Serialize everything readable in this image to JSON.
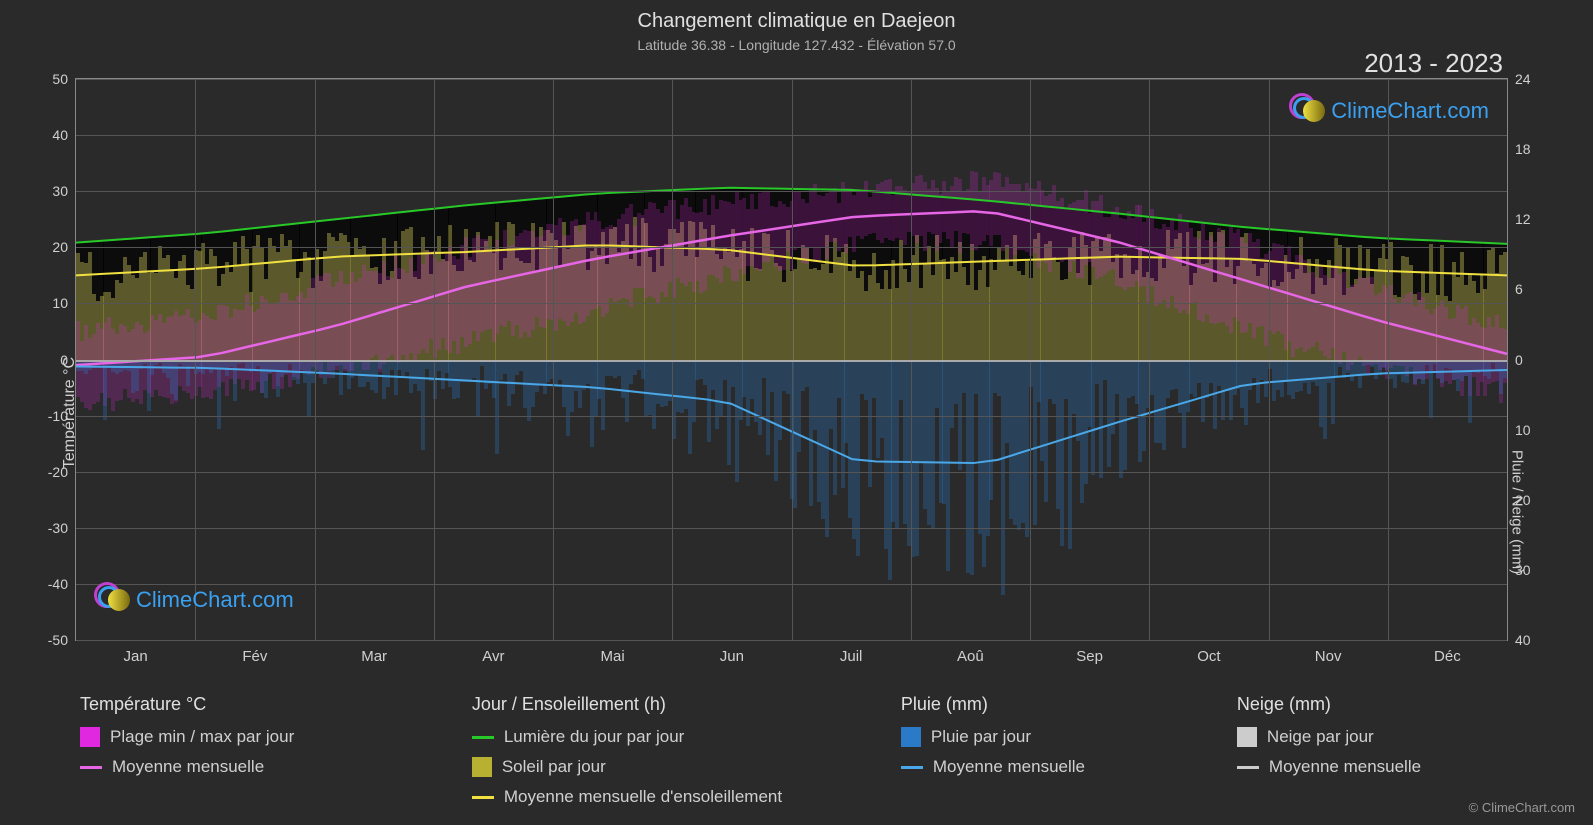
{
  "title": "Changement climatique en Daejeon",
  "subtitle": "Latitude 36.38 - Longitude 127.432 - Élévation 57.0",
  "year_range": "2013 - 2023",
  "copyright": "© ClimeChart.com",
  "logo_text": "ClimeChart.com",
  "chart": {
    "type": "climate-multi-axis",
    "background_color": "#2a2a2a",
    "grid_color": "#555555",
    "border_color": "#888888",
    "text_color": "#d0d0d0",
    "title_fontsize": 20,
    "subtitle_fontsize": 14,
    "label_fontsize": 14,
    "x_axis": {
      "months": [
        "Jan",
        "Fév",
        "Mar",
        "Avr",
        "Mai",
        "Jun",
        "Juil",
        "Aoû",
        "Sep",
        "Oct",
        "Nov",
        "Déc"
      ]
    },
    "y_left": {
      "title": "Température °C",
      "min": -50,
      "max": 50,
      "step": 10,
      "ticks": [
        -50,
        -40,
        -30,
        -20,
        -10,
        0,
        10,
        20,
        30,
        40,
        50
      ]
    },
    "y_right_top": {
      "title": "Jour / Ensoleillement (h)",
      "min": 0,
      "max": 24,
      "step": 6,
      "ticks": [
        0,
        6,
        12,
        18,
        24
      ]
    },
    "y_right_bottom": {
      "title": "Pluie / Neige (mm)",
      "min": 0,
      "max": 40,
      "step": 10,
      "ticks": [
        0,
        10,
        20,
        30,
        40
      ]
    },
    "series": {
      "temp_avg_monthly": {
        "color": "#e666e6",
        "values_c": [
          -1,
          0.5,
          6,
          13,
          18,
          22,
          25.5,
          26.5,
          21,
          14,
          7,
          1
        ],
        "line_width": 2.5
      },
      "daylight_monthly": {
        "color": "#28c828",
        "values_h": [
          10,
          10.8,
          12,
          13.2,
          14.2,
          14.7,
          14.5,
          13.6,
          12.5,
          11.3,
          10.4,
          9.9
        ],
        "line_width": 2
      },
      "sunshine_monthly": {
        "color": "#f0e040",
        "values_h": [
          7.2,
          7.8,
          8.8,
          9.2,
          9.8,
          9.4,
          8.0,
          8.4,
          8.8,
          8.6,
          7.6,
          7.2
        ],
        "line_width": 2
      },
      "rain_monthly": {
        "color": "#4aa8e8",
        "values_mm": [
          1,
          1.2,
          2,
          3,
          4,
          6,
          14.5,
          14.8,
          9,
          3.5,
          2,
          1.5
        ],
        "line_width": 2
      },
      "snow_monthly": {
        "color": "#cccccc",
        "values_mm": [
          0.3,
          0.2,
          0.05,
          0,
          0,
          0,
          0,
          0,
          0,
          0,
          0.05,
          0.3
        ],
        "line_width": 2
      },
      "temp_range_daily": {
        "color": "#e028e0",
        "opacity": 0.22,
        "min_base_c": [
          -8,
          -6,
          -2,
          3,
          9,
          15,
          21,
          21,
          14,
          5,
          -2,
          -6
        ],
        "max_base_c": [
          5,
          8,
          14,
          20,
          25,
          28,
          30,
          32,
          27,
          21,
          13,
          6
        ],
        "jitter_c": 4
      },
      "sunshine_daily": {
        "color": "#b8b030",
        "opacity": 0.35,
        "base_h": [
          7.2,
          7.8,
          8.8,
          9.2,
          9.8,
          9.4,
          8.0,
          8.4,
          8.8,
          8.6,
          7.6,
          7.2
        ],
        "jitter_h": 2.5
      },
      "rain_daily": {
        "color": "#2a7ac8",
        "opacity": 0.3,
        "base_mm": [
          1,
          1.2,
          2,
          3,
          4,
          6,
          14.5,
          14.8,
          9,
          3.5,
          2,
          1.5
        ],
        "jitter_mm": 8
      },
      "black_cap": {
        "color": "#000000",
        "opacity": 0.7
      }
    }
  },
  "legend": {
    "groups": [
      {
        "header": "Température °C",
        "items": [
          {
            "swatch": "box",
            "color": "#e028e0",
            "label": "Plage min / max par jour"
          },
          {
            "swatch": "line",
            "color": "#e666e6",
            "label": "Moyenne mensuelle"
          }
        ]
      },
      {
        "header": "Jour / Ensoleillement (h)",
        "items": [
          {
            "swatch": "line",
            "color": "#28c828",
            "label": "Lumière du jour par jour"
          },
          {
            "swatch": "box",
            "color": "#b8b030",
            "label": "Soleil par jour"
          },
          {
            "swatch": "line",
            "color": "#f0e040",
            "label": "Moyenne mensuelle d'ensoleillement"
          }
        ]
      },
      {
        "header": "Pluie (mm)",
        "items": [
          {
            "swatch": "box",
            "color": "#2a7ac8",
            "label": "Pluie par jour"
          },
          {
            "swatch": "line",
            "color": "#4aa8e8",
            "label": "Moyenne mensuelle"
          }
        ]
      },
      {
        "header": "Neige (mm)",
        "items": [
          {
            "swatch": "box",
            "color": "#cccccc",
            "label": "Neige par jour"
          },
          {
            "swatch": "line",
            "color": "#cccccc",
            "label": "Moyenne mensuelle"
          }
        ]
      }
    ]
  },
  "logo": {
    "color_text": "#3aa0f0",
    "ring1": "#c040d0",
    "ring2": "#3aa0f0",
    "sun_grad": [
      "#f0e040",
      "#7a6a10"
    ]
  }
}
